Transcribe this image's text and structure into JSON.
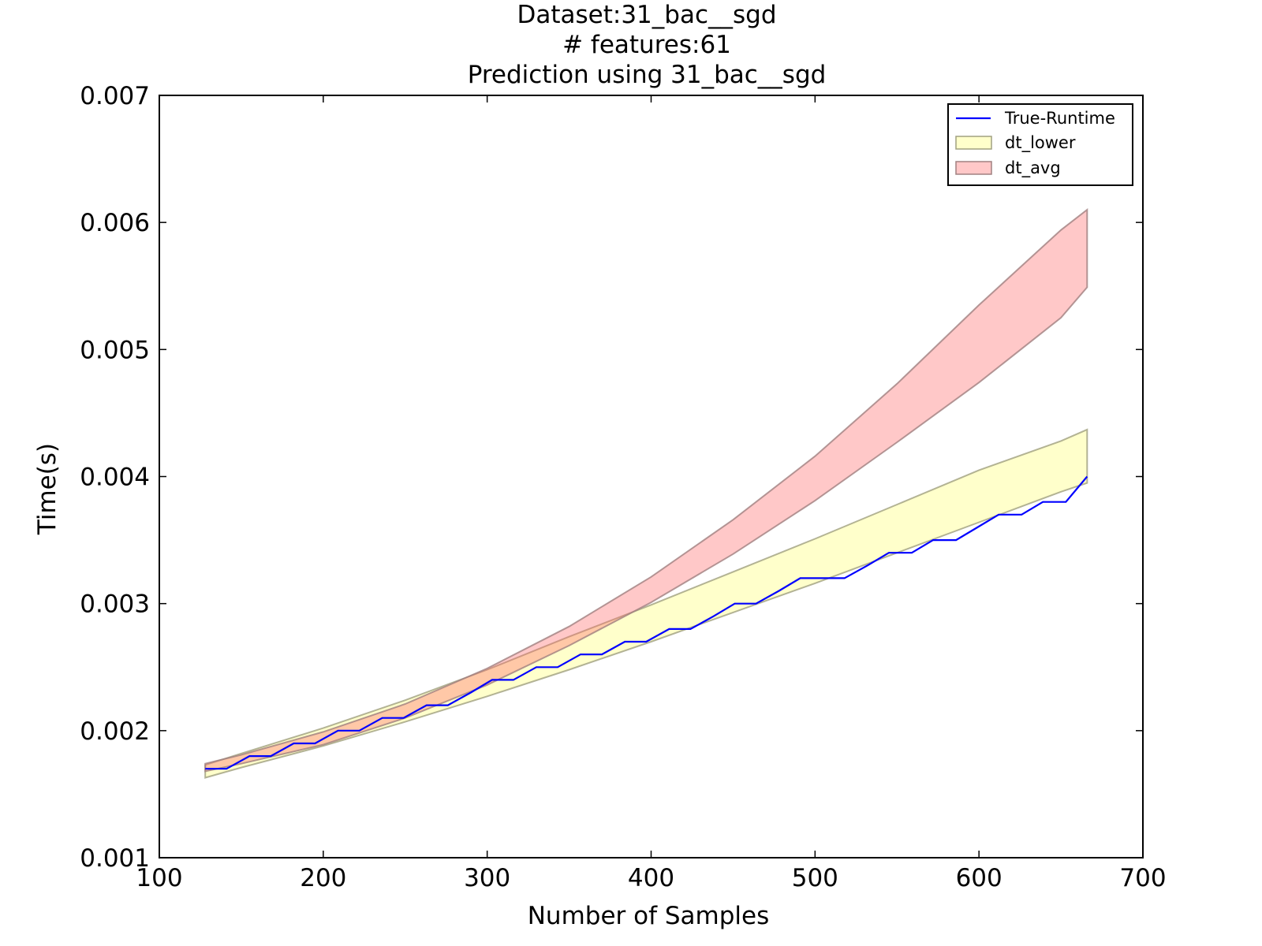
{
  "chart_data": {
    "type": "area",
    "title_lines": [
      "Dataset:31_bac__sgd",
      "# features:61",
      "Prediction using 31_bac__sgd"
    ],
    "xlabel": "Number of Samples",
    "ylabel": "Time(s)",
    "xlim": [
      100,
      700
    ],
    "ylim": [
      0.001,
      0.007
    ],
    "x_ticks": [
      100,
      200,
      300,
      400,
      500,
      600,
      700
    ],
    "x_tick_labels": [
      "100",
      "200",
      "300",
      "400",
      "500",
      "600",
      "700"
    ],
    "y_ticks": [
      0.001,
      0.002,
      0.003,
      0.004,
      0.005,
      0.006,
      0.007
    ],
    "y_tick_labels": [
      "0.001",
      "0.002",
      "0.003",
      "0.004",
      "0.005",
      "0.006",
      "0.007"
    ],
    "grid": false,
    "legend_position": "top-right",
    "series": [
      {
        "name": "True-Runtime",
        "kind": "line",
        "color": "#0000ff",
        "x": [
          128,
          141,
          155,
          168,
          182,
          195,
          209,
          222,
          236,
          249,
          263,
          276,
          290,
          303,
          316,
          330,
          343,
          357,
          370,
          384,
          397,
          411,
          424,
          438,
          451,
          464,
          478,
          491,
          505,
          518,
          532,
          545,
          559,
          572,
          586,
          599,
          612,
          626,
          639,
          653,
          666
        ],
        "y": [
          0.0017,
          0.0017,
          0.0018,
          0.0018,
          0.0019,
          0.0019,
          0.002,
          0.002,
          0.0021,
          0.0021,
          0.0022,
          0.0022,
          0.0023,
          0.0024,
          0.0024,
          0.0025,
          0.0025,
          0.0026,
          0.0026,
          0.0027,
          0.0027,
          0.0028,
          0.0028,
          0.0029,
          0.003,
          0.003,
          0.0031,
          0.0032,
          0.0032,
          0.0032,
          0.0033,
          0.0034,
          0.0034,
          0.0035,
          0.0035,
          0.0036,
          0.0037,
          0.0037,
          0.0038,
          0.0038,
          0.004
        ]
      },
      {
        "name": "dt_lower",
        "kind": "band",
        "fill": "#ffffa0",
        "fill_opacity": 0.55,
        "edge": "#a0a080",
        "x": [
          128,
          150,
          200,
          250,
          300,
          350,
          400,
          450,
          500,
          550,
          600,
          650,
          666
        ],
        "lower": [
          0.00163,
          0.00171,
          0.00188,
          0.00207,
          0.00227,
          0.00248,
          0.0027,
          0.00293,
          0.00316,
          0.0034,
          0.00364,
          0.00388,
          0.00395
        ],
        "upper": [
          0.00173,
          0.00182,
          0.00202,
          0.00224,
          0.00248,
          0.00274,
          0.00299,
          0.00325,
          0.00351,
          0.00378,
          0.00405,
          0.00428,
          0.00437
        ]
      },
      {
        "name": "dt_avg",
        "kind": "band",
        "fill": "#ff6666",
        "fill_opacity": 0.36,
        "edge": "#a08080",
        "x": [
          128,
          150,
          200,
          250,
          300,
          350,
          400,
          450,
          500,
          550,
          600,
          650,
          666
        ],
        "lower": [
          0.00168,
          0.00174,
          0.00189,
          0.0021,
          0.00236,
          0.00267,
          0.00301,
          0.00339,
          0.00381,
          0.00427,
          0.00474,
          0.00525,
          0.00549
        ],
        "upper": [
          0.00174,
          0.00181,
          0.00199,
          0.00221,
          0.00249,
          0.00282,
          0.00321,
          0.00366,
          0.00416,
          0.00473,
          0.00535,
          0.00594,
          0.0061
        ]
      }
    ]
  }
}
